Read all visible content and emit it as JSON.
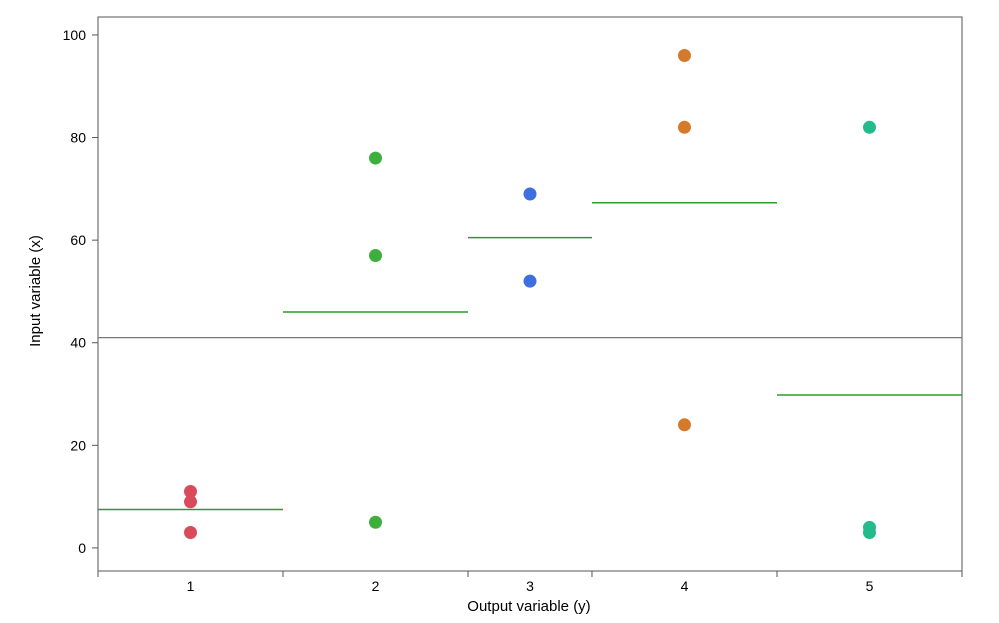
{
  "chart_data": {
    "type": "scatter",
    "title": "",
    "xlabel": "Output variable (y)",
    "ylabel": "Input variable (x)",
    "ylim": [
      -4.5,
      103.5
    ],
    "yticks": [
      0,
      20,
      40,
      60,
      80,
      100
    ],
    "categories": [
      "1",
      "2",
      "3",
      "4",
      "5"
    ],
    "category_bounds": [
      0.5,
      1.5,
      2.5,
      3.17,
      4.17,
      5.17
    ],
    "grid": false,
    "horizontal_rule": {
      "value": 41
    },
    "series": [
      {
        "category": "1",
        "color": "#d94a5a",
        "values": [
          11,
          9,
          3
        ]
      },
      {
        "category": "2",
        "color": "#3daf3d",
        "values": [
          76,
          57,
          5
        ]
      },
      {
        "category": "3",
        "color": "#3f6fdf",
        "values": [
          69,
          52
        ]
      },
      {
        "category": "4",
        "color": "#d47a2a",
        "values": [
          96,
          82,
          24
        ]
      },
      {
        "category": "5",
        "color": "#22bb8a",
        "values": [
          82,
          4,
          3
        ]
      }
    ],
    "step_segments": {
      "color": "#2a9d2a",
      "values": [
        7.5,
        46,
        60.5,
        67.3,
        29.8
      ]
    }
  }
}
